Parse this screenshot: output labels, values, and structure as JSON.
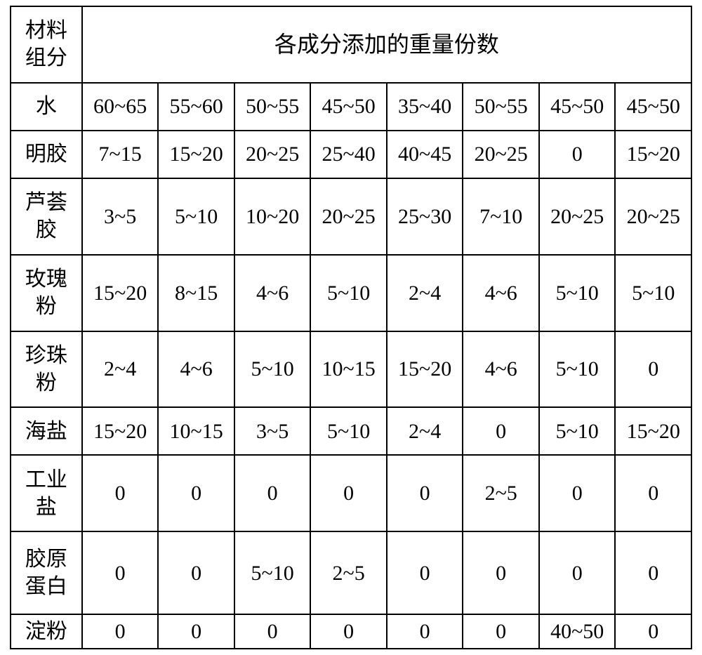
{
  "table": {
    "header_left_line1": "材料",
    "header_left_line2": "组分",
    "header_title": "各成分添加的重量份数",
    "rows": [
      {
        "label": "水",
        "cells": [
          "60~65",
          "55~60",
          "50~55",
          "45~50",
          "35~40",
          "50~55",
          "45~50",
          "45~50"
        ]
      },
      {
        "label": "明胶",
        "cells": [
          "7~15",
          "15~20",
          "20~25",
          "25~40",
          "40~45",
          "20~25",
          "0",
          "15~20"
        ]
      },
      {
        "label_l1": "芦荟",
        "label_l2": "胶",
        "cells": [
          "3~5",
          "5~10",
          "10~20",
          "20~25",
          "25~30",
          "7~10",
          "20~25",
          "20~25"
        ]
      },
      {
        "label_l1": "玫瑰",
        "label_l2": "粉",
        "cells": [
          "15~20",
          "8~15",
          "4~6",
          "5~10",
          "2~4",
          "4~6",
          "5~10",
          "5~10"
        ]
      },
      {
        "label_l1": "珍珠",
        "label_l2": "粉",
        "cells": [
          "2~4",
          "4~6",
          "5~10",
          "10~15",
          "15~20",
          "4~6",
          "5~10",
          "0"
        ]
      },
      {
        "label": "海盐",
        "cells": [
          "15~20",
          "10~15",
          "3~5",
          "5~10",
          "2~4",
          "0",
          "5~10",
          "15~20"
        ]
      },
      {
        "label_l1": "工业",
        "label_l2": "盐",
        "cells": [
          "0",
          "0",
          "0",
          "0",
          "0",
          "2~5",
          "0",
          "0"
        ]
      },
      {
        "label_l1": "胶原",
        "label_l2": "蛋白",
        "cells": [
          "0",
          "0",
          "5~10",
          "2~5",
          "0",
          "0",
          "0",
          "0"
        ]
      },
      {
        "label": "淀粉",
        "cells": [
          "0",
          "0",
          "0",
          "0",
          "0",
          "0",
          "40~50",
          "0"
        ]
      }
    ],
    "border_color": "#000000",
    "bg_color": "#ffffff",
    "text_color": "#000000",
    "font_size_cell": 30,
    "font_size_title": 32
  }
}
